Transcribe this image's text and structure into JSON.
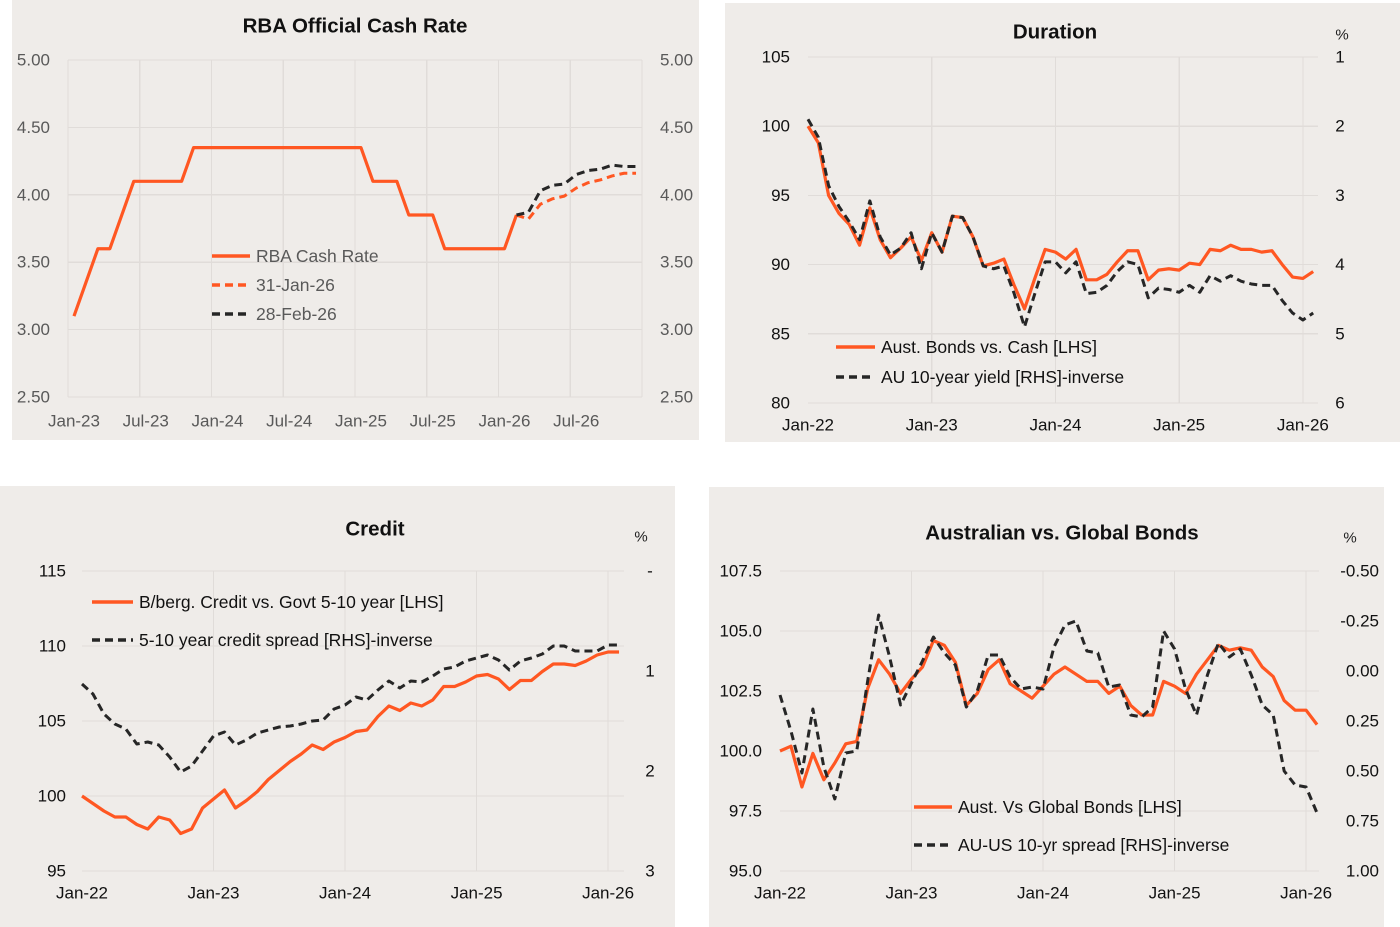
{
  "page": {
    "background": "#FFFFFF",
    "panel_background": "#EFECE9"
  },
  "colors": {
    "orange": "#FF5722",
    "black": "#262626",
    "grid": "#E0DCD9",
    "muted_text": "#595959"
  },
  "chart_data": [
    {
      "id": "rba-cash-rate",
      "type": "line",
      "title": "RBA Official Cash Rate",
      "xlabel": "",
      "ylabel": "",
      "grid": true,
      "legend": "center-left",
      "categories": [
        "Jan-23",
        "Feb-23",
        "Mar-23",
        "Apr-23",
        "May-23",
        "Jun-23",
        "Jul-23",
        "Aug-23",
        "Sep-23",
        "Oct-23",
        "Nov-23",
        "Dec-23",
        "Jan-24",
        "Feb-24",
        "Mar-24",
        "Apr-24",
        "May-24",
        "Jun-24",
        "Jul-24",
        "Aug-24",
        "Sep-24",
        "Oct-24",
        "Nov-24",
        "Dec-24",
        "Jan-25",
        "Feb-25",
        "Mar-25",
        "Apr-25",
        "May-25",
        "Jun-25",
        "Jul-25",
        "Aug-25",
        "Sep-25",
        "Oct-25",
        "Nov-25",
        "Dec-25",
        "Jan-26",
        "Feb-26",
        "Mar-26",
        "Apr-26",
        "May-26",
        "Jun-26",
        "Jul-26",
        "Aug-26",
        "Sep-26",
        "Oct-26",
        "Nov-26",
        "Dec-26"
      ],
      "x_tick_labels": [
        "Jan-23",
        "Jul-23",
        "Jan-24",
        "Jul-24",
        "Jan-25",
        "Jul-25",
        "Jan-26",
        "Jul-26"
      ],
      "yleft": {
        "range": [
          2.5,
          5.0
        ],
        "ticks": [
          5.0,
          4.5,
          4.0,
          3.5,
          3.0,
          2.5
        ],
        "tick_labels": [
          "5.00",
          "4.50",
          "4.00",
          "3.50",
          "3.00",
          "2.50"
        ]
      },
      "yright": {
        "range": [
          2.5,
          5.0
        ],
        "inverted": false,
        "unit": "",
        "ticks": [
          5.0,
          4.5,
          4.0,
          3.5,
          3.0,
          2.5
        ],
        "tick_labels": [
          "5.00",
          "4.50",
          "4.00",
          "3.50",
          "3.00",
          "2.50"
        ]
      },
      "series": [
        {
          "name": "RBA Cash Rate",
          "axis": "left",
          "color": "#FF5722",
          "style": "solid",
          "values": [
            3.1,
            3.35,
            3.6,
            3.6,
            3.85,
            4.1,
            4.1,
            4.1,
            4.1,
            4.1,
            4.35,
            4.35,
            4.35,
            4.35,
            4.35,
            4.35,
            4.35,
            4.35,
            4.35,
            4.35,
            4.35,
            4.35,
            4.35,
            4.35,
            4.35,
            4.1,
            4.1,
            4.1,
            3.85,
            3.85,
            3.85,
            3.6,
            3.6,
            3.6,
            3.6,
            3.6,
            3.6,
            3.85,
            null,
            null,
            null,
            null,
            null,
            null,
            null,
            null,
            null,
            null
          ]
        },
        {
          "name": "31-Jan-26",
          "axis": "left",
          "color": "#FF5722",
          "style": "dashed",
          "values": [
            null,
            null,
            null,
            null,
            null,
            null,
            null,
            null,
            null,
            null,
            null,
            null,
            null,
            null,
            null,
            null,
            null,
            null,
            null,
            null,
            null,
            null,
            null,
            null,
            null,
            null,
            null,
            null,
            null,
            null,
            null,
            null,
            null,
            null,
            null,
            null,
            null,
            3.85,
            3.82,
            3.93,
            3.97,
            3.99,
            4.05,
            4.09,
            4.11,
            4.14,
            4.16,
            4.16
          ]
        },
        {
          "name": "28-Feb-26",
          "axis": "left",
          "color": "#262626",
          "style": "dashed",
          "values": [
            null,
            null,
            null,
            null,
            null,
            null,
            null,
            null,
            null,
            null,
            null,
            null,
            null,
            null,
            null,
            null,
            null,
            null,
            null,
            null,
            null,
            null,
            null,
            null,
            null,
            null,
            null,
            null,
            null,
            null,
            null,
            null,
            null,
            null,
            null,
            null,
            null,
            3.85,
            3.87,
            4.03,
            4.07,
            4.08,
            4.15,
            4.18,
            4.19,
            4.22,
            4.21,
            4.21
          ]
        }
      ]
    },
    {
      "id": "duration",
      "type": "line",
      "title": "Duration",
      "xlabel": "",
      "ylabel": "",
      "grid": true,
      "legend": "bottom-left",
      "categories": [
        "Jan-22",
        "Feb-22",
        "Mar-22",
        "Apr-22",
        "May-22",
        "Jun-22",
        "Jul-22",
        "Aug-22",
        "Sep-22",
        "Oct-22",
        "Nov-22",
        "Dec-22",
        "Jan-23",
        "Feb-23",
        "Mar-23",
        "Apr-23",
        "May-23",
        "Jun-23",
        "Jul-23",
        "Aug-23",
        "Sep-23",
        "Oct-23",
        "Nov-23",
        "Dec-23",
        "Jan-24",
        "Feb-24",
        "Mar-24",
        "Apr-24",
        "May-24",
        "Jun-24",
        "Jul-24",
        "Aug-24",
        "Sep-24",
        "Oct-24",
        "Nov-24",
        "Dec-24",
        "Jan-25",
        "Feb-25",
        "Mar-25",
        "Apr-25",
        "May-25",
        "Jun-25",
        "Jul-25",
        "Aug-25",
        "Sep-25",
        "Oct-25",
        "Nov-25",
        "Dec-25",
        "Jan-26",
        "Feb-26"
      ],
      "x_tick_labels": [
        "Jan-22",
        "Jan-23",
        "Jan-24",
        "Jan-25",
        "Jan-26"
      ],
      "yleft": {
        "range": [
          80,
          105
        ],
        "ticks": [
          105,
          100,
          95,
          90,
          85,
          80
        ],
        "tick_labels": [
          "105",
          "100",
          "95",
          "90",
          "85",
          "80"
        ]
      },
      "yright": {
        "range": [
          1,
          6
        ],
        "inverted": true,
        "unit": "%",
        "ticks": [
          1,
          2,
          3,
          4,
          5,
          6
        ],
        "tick_labels": [
          "1",
          "2",
          "3",
          "4",
          "5",
          "6"
        ]
      },
      "series": [
        {
          "name": "Aust. Bonds vs. Cash [LHS]",
          "axis": "left",
          "color": "#FF5722",
          "style": "solid",
          "values": [
            100.0,
            98.8,
            95.0,
            93.7,
            92.9,
            91.4,
            94.1,
            91.8,
            90.5,
            91.2,
            92.0,
            90.3,
            92.3,
            90.9,
            93.5,
            93.4,
            92.0,
            89.9,
            90.1,
            90.4,
            88.5,
            86.8,
            89.0,
            91.1,
            90.9,
            90.4,
            91.1,
            88.9,
            88.9,
            89.3,
            90.2,
            91.0,
            91.0,
            88.9,
            89.6,
            89.7,
            89.6,
            90.1,
            90.0,
            91.1,
            91.0,
            91.4,
            91.1,
            91.1,
            90.9,
            91.0,
            90.0,
            89.1,
            89.0,
            89.5
          ]
        },
        {
          "name": "AU 10-year yield [RHS]-inverse",
          "axis": "right",
          "color": "#262626",
          "style": "dashed",
          "values": [
            1.9,
            2.16,
            2.86,
            3.16,
            3.38,
            3.64,
            3.08,
            3.6,
            3.86,
            3.76,
            3.54,
            4.06,
            3.54,
            3.82,
            3.3,
            3.32,
            3.6,
            4.02,
            4.06,
            4.02,
            4.42,
            4.9,
            4.42,
            3.96,
            3.96,
            4.12,
            3.96,
            4.42,
            4.4,
            4.3,
            4.1,
            3.96,
            4.0,
            4.48,
            4.34,
            4.36,
            4.4,
            4.3,
            4.4,
            4.16,
            4.24,
            4.16,
            4.24,
            4.28,
            4.3,
            4.3,
            4.52,
            4.7,
            4.8,
            4.7
          ]
        }
      ]
    },
    {
      "id": "credit",
      "type": "line",
      "title": "Credit",
      "xlabel": "",
      "ylabel": "",
      "grid": true,
      "legend": "top-left",
      "categories": [
        "Jan-22",
        "Feb-22",
        "Mar-22",
        "Apr-22",
        "May-22",
        "Jun-22",
        "Jul-22",
        "Aug-22",
        "Sep-22",
        "Oct-22",
        "Nov-22",
        "Dec-22",
        "Jan-23",
        "Feb-23",
        "Mar-23",
        "Apr-23",
        "May-23",
        "Jun-23",
        "Jul-23",
        "Aug-23",
        "Sep-23",
        "Oct-23",
        "Nov-23",
        "Dec-23",
        "Jan-24",
        "Feb-24",
        "Mar-24",
        "Apr-24",
        "May-24",
        "Jun-24",
        "Jul-24",
        "Aug-24",
        "Sep-24",
        "Oct-24",
        "Nov-24",
        "Dec-24",
        "Jan-25",
        "Feb-25",
        "Mar-25",
        "Apr-25",
        "May-25",
        "Jun-25",
        "Jul-25",
        "Aug-25",
        "Sep-25",
        "Oct-25",
        "Nov-25",
        "Dec-25",
        "Jan-26",
        "Feb-26"
      ],
      "x_tick_labels": [
        "Jan-22",
        "Jan-23",
        "Jan-24",
        "Jan-25",
        "Jan-26"
      ],
      "yleft": {
        "range": [
          95,
          115
        ],
        "ticks": [
          115,
          110,
          105,
          100,
          95
        ],
        "tick_labels": [
          "115",
          "110",
          "105",
          "100",
          "95"
        ]
      },
      "yright": {
        "range": [
          0,
          3
        ],
        "inverted": true,
        "unit": "%",
        "ticks": [
          0,
          1,
          2,
          3
        ],
        "tick_labels": [
          "-",
          "1",
          "2",
          "3"
        ]
      },
      "series": [
        {
          "name": "B/berg. Credit vs. Govt 5-10 year [LHS]",
          "axis": "left",
          "color": "#FF5722",
          "style": "solid",
          "values": [
            100.0,
            99.5,
            99.0,
            98.6,
            98.6,
            98.1,
            97.8,
            98.6,
            98.4,
            97.5,
            97.8,
            99.2,
            99.8,
            100.4,
            99.2,
            99.7,
            100.3,
            101.1,
            101.7,
            102.3,
            102.8,
            103.4,
            103.1,
            103.6,
            103.9,
            104.3,
            104.4,
            105.3,
            106.0,
            105.7,
            106.2,
            106.0,
            106.4,
            107.3,
            107.3,
            107.6,
            108.0,
            108.1,
            107.8,
            107.1,
            107.7,
            107.7,
            108.3,
            108.8,
            108.8,
            108.7,
            109.0,
            109.4,
            109.6,
            109.6
          ]
        },
        {
          "name": "5-10 year credit spread [RHS]-inverse",
          "axis": "right",
          "color": "#262626",
          "style": "dashed",
          "values": [
            1.13,
            1.23,
            1.43,
            1.53,
            1.58,
            1.73,
            1.71,
            1.74,
            1.86,
            2.01,
            1.95,
            1.8,
            1.65,
            1.61,
            1.74,
            1.69,
            1.62,
            1.59,
            1.56,
            1.55,
            1.53,
            1.5,
            1.49,
            1.38,
            1.34,
            1.26,
            1.29,
            1.19,
            1.1,
            1.17,
            1.1,
            1.11,
            1.05,
            0.98,
            0.96,
            0.9,
            0.87,
            0.84,
            0.89,
            0.99,
            0.9,
            0.87,
            0.83,
            0.75,
            0.75,
            0.8,
            0.8,
            0.8,
            0.74,
            0.74
          ]
        }
      ]
    },
    {
      "id": "aus-vs-global-bonds",
      "type": "line",
      "title": "Australian vs. Global Bonds",
      "xlabel": "",
      "ylabel": "",
      "grid": true,
      "legend": "bottom-center",
      "categories": [
        "Jan-22",
        "Feb-22",
        "Mar-22",
        "Apr-22",
        "May-22",
        "Jun-22",
        "Jul-22",
        "Aug-22",
        "Sep-22",
        "Oct-22",
        "Nov-22",
        "Dec-22",
        "Jan-23",
        "Feb-23",
        "Mar-23",
        "Apr-23",
        "May-23",
        "Jun-23",
        "Jul-23",
        "Aug-23",
        "Sep-23",
        "Oct-23",
        "Nov-23",
        "Dec-23",
        "Jan-24",
        "Feb-24",
        "Mar-24",
        "Apr-24",
        "May-24",
        "Jun-24",
        "Jul-24",
        "Aug-24",
        "Sep-24",
        "Oct-24",
        "Nov-24",
        "Dec-24",
        "Jan-25",
        "Feb-25",
        "Mar-25",
        "Apr-25",
        "May-25",
        "Jun-25",
        "Jul-25",
        "Aug-25",
        "Sep-25",
        "Oct-25",
        "Nov-25",
        "Dec-25",
        "Jan-26",
        "Feb-26"
      ],
      "x_tick_labels": [
        "Jan-22",
        "Jan-23",
        "Jan-24",
        "Jan-25",
        "Jan-26"
      ],
      "yleft": {
        "range": [
          95.0,
          107.5
        ],
        "ticks": [
          107.5,
          105.0,
          102.5,
          100.0,
          97.5,
          95.0
        ],
        "tick_labels": [
          "107.5",
          "105.0",
          "102.5",
          "100.0",
          "97.5",
          "95.0"
        ]
      },
      "yright": {
        "range": [
          -0.5,
          1.0
        ],
        "inverted": true,
        "unit": "%",
        "ticks": [
          -0.5,
          -0.25,
          0,
          0.25,
          0.5,
          0.75,
          1.0
        ],
        "tick_labels": [
          "-0.50",
          "-0.25",
          "0.00",
          "0.25",
          "0.50",
          "0.75",
          "1.00"
        ]
      },
      "series": [
        {
          "name": "Aust. Vs Global Bonds [LHS]",
          "axis": "left",
          "color": "#FF5722",
          "style": "solid",
          "values": [
            100.0,
            100.2,
            98.5,
            99.9,
            98.8,
            99.5,
            100.3,
            100.4,
            102.6,
            103.8,
            103.2,
            102.4,
            103.0,
            103.5,
            104.6,
            104.4,
            103.7,
            101.9,
            102.4,
            103.4,
            103.8,
            102.8,
            102.5,
            102.2,
            102.7,
            103.2,
            103.5,
            103.2,
            102.9,
            102.9,
            102.4,
            102.7,
            101.9,
            101.5,
            101.5,
            102.9,
            102.7,
            102.4,
            103.2,
            103.8,
            104.4,
            104.2,
            104.3,
            104.2,
            103.5,
            103.1,
            102.1,
            101.7,
            101.7,
            101.1
          ]
        },
        {
          "name": "AU-US 10-yr spread [RHS]-inverse",
          "axis": "right",
          "color": "#262626",
          "style": "dashed",
          "values": [
            0.12,
            0.3,
            0.51,
            0.19,
            0.48,
            0.64,
            0.41,
            0.4,
            0.05,
            -0.28,
            -0.07,
            0.17,
            0.06,
            -0.05,
            -0.17,
            -0.09,
            -0.03,
            0.18,
            0.1,
            -0.08,
            -0.08,
            0.03,
            0.09,
            0.08,
            0.09,
            -0.12,
            -0.23,
            -0.25,
            -0.1,
            -0.09,
            0.08,
            0.07,
            0.22,
            0.23,
            0.18,
            -0.2,
            -0.11,
            0.09,
            0.22,
            0.02,
            -0.14,
            -0.07,
            -0.11,
            0.02,
            0.17,
            0.22,
            0.5,
            0.57,
            0.58,
            0.71
          ]
        }
      ]
    }
  ]
}
